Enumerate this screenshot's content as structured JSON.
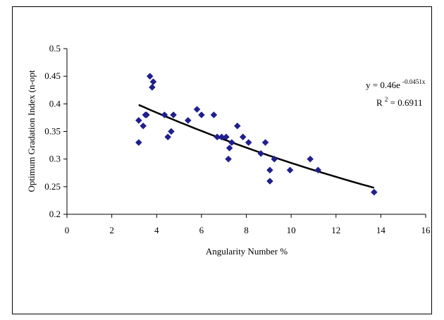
{
  "chart_data": {
    "type": "scatter",
    "title": "",
    "xlabel": "Angularity Number  %",
    "ylabel": "Optimum Gradation Index (n-opt",
    "xlim": [
      0,
      16
    ],
    "ylim": [
      0.2,
      0.5
    ],
    "x_ticks": [
      "0",
      "2",
      "4",
      "6",
      "8",
      "10",
      "12",
      "14",
      "16"
    ],
    "y_ticks": [
      "0.2",
      "0.25",
      "0.3",
      "0.35",
      "0.4",
      "0.45",
      "0.5"
    ],
    "grid": false,
    "legend": "none",
    "marker_color": "#1f1f8f",
    "trendline_color": "#000000",
    "series": [
      {
        "points": [
          [
            3.2,
            0.33
          ],
          [
            3.2,
            0.37
          ],
          [
            3.4,
            0.36
          ],
          [
            3.5,
            0.38
          ],
          [
            3.55,
            0.38
          ],
          [
            3.7,
            0.45
          ],
          [
            3.8,
            0.43
          ],
          [
            3.85,
            0.44
          ],
          [
            4.35,
            0.38
          ],
          [
            4.5,
            0.34
          ],
          [
            4.65,
            0.35
          ],
          [
            4.75,
            0.38
          ],
          [
            5.4,
            0.37
          ],
          [
            5.8,
            0.39
          ],
          [
            6.0,
            0.38
          ],
          [
            6.55,
            0.38
          ],
          [
            6.7,
            0.34
          ],
          [
            6.9,
            0.34
          ],
          [
            7.1,
            0.34
          ],
          [
            7.2,
            0.3
          ],
          [
            7.25,
            0.32
          ],
          [
            7.35,
            0.33
          ],
          [
            7.6,
            0.36
          ],
          [
            7.85,
            0.34
          ],
          [
            8.1,
            0.33
          ],
          [
            8.65,
            0.31
          ],
          [
            8.85,
            0.33
          ],
          [
            9.05,
            0.28
          ],
          [
            9.05,
            0.26
          ],
          [
            9.25,
            0.3
          ],
          [
            9.95,
            0.28
          ],
          [
            10.85,
            0.3
          ],
          [
            11.2,
            0.28
          ],
          [
            13.7,
            0.24
          ]
        ]
      }
    ],
    "trendline": {
      "type": "exponential",
      "a": 0.46,
      "b": -0.0451,
      "x_start": 3.2,
      "x_end": 13.7,
      "equation": {
        "prefix": "y = 0.46e",
        "exponent": "-0.0451x"
      },
      "r2": {
        "prefix": "R",
        "superscript": "2",
        "value": " = 0.6911"
      }
    }
  }
}
